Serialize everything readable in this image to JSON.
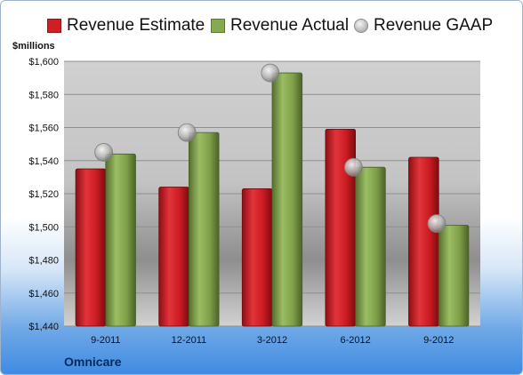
{
  "units_label": "$millions",
  "company": "Omnicare",
  "colors": {
    "estimate": "#cf1f25",
    "actual": "#7ea24a",
    "gaap": "#a8a8a8"
  },
  "chart_data": {
    "type": "bar",
    "categories": [
      "9-2011",
      "12-2011",
      "3-2012",
      "6-2012",
      "9-2012"
    ],
    "series": [
      {
        "name": "Revenue Estimate",
        "values": [
          1535,
          1524,
          1523,
          1559,
          1542
        ]
      },
      {
        "name": "Revenue Actual",
        "values": [
          1544,
          1557,
          1593,
          1536,
          1501
        ]
      },
      {
        "name": "Revenue GAAP",
        "values": [
          1545,
          1557,
          1593,
          1536,
          1502
        ]
      }
    ],
    "ylim": [
      1440,
      1600
    ],
    "yticks": [
      1440,
      1460,
      1480,
      1500,
      1520,
      1540,
      1560,
      1580,
      1600
    ],
    "ytick_labels": [
      "$1,440",
      "$1,460",
      "$1,480",
      "$1,500",
      "$1,520",
      "$1,540",
      "$1,560",
      "$1,580",
      "$1,600"
    ],
    "grid": true,
    "legend": "top"
  }
}
